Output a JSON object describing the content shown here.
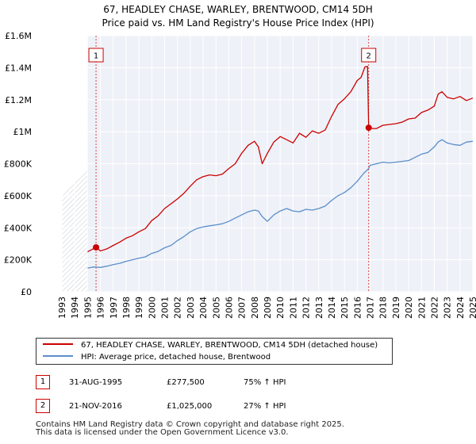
{
  "chart_data": {
    "type": "line",
    "title": "67, HEADLEY CHASE, WARLEY, BRENTWOOD, CM14 5DH",
    "subtitle": "Price paid vs. HM Land Registry's House Price Index (HPI)",
    "xlim": [
      1993,
      2025
    ],
    "ylim": [
      0,
      1600000
    ],
    "x_ticks": [
      1993,
      1994,
      1995,
      1996,
      1997,
      1998,
      1999,
      2000,
      2001,
      2002,
      2003,
      2004,
      2005,
      2006,
      2007,
      2008,
      2009,
      2010,
      2011,
      2012,
      2013,
      2014,
      2015,
      2016,
      2017,
      2018,
      2019,
      2020,
      2021,
      2022,
      2023,
      2024,
      2025
    ],
    "y_ticks": [
      {
        "value": 0,
        "label": "£0"
      },
      {
        "value": 200000,
        "label": "£200K"
      },
      {
        "value": 400000,
        "label": "£400K"
      },
      {
        "value": 600000,
        "label": "£600K"
      },
      {
        "value": 800000,
        "label": "£800K"
      },
      {
        "value": 1000000,
        "label": "£1M"
      },
      {
        "value": 1200000,
        "label": "£1.2M"
      },
      {
        "value": 1400000,
        "label": "£1.4M"
      },
      {
        "value": 1600000,
        "label": "£1.6M"
      }
    ],
    "grid": true,
    "data_start_year": 1995.0,
    "series": [
      {
        "name": "67, HEADLEY CHASE, WARLEY, BRENTWOOD, CM14 5DH (detached house)",
        "color": "#cc0000",
        "x": [
          1995.0,
          1995.3,
          1995.66,
          1996.0,
          1996.5,
          1997.0,
          1997.5,
          1998.0,
          1998.5,
          1999.0,
          1999.5,
          2000.0,
          2000.5,
          2001.0,
          2001.5,
          2002.0,
          2002.5,
          2003.0,
          2003.5,
          2004.0,
          2004.5,
          2005.0,
          2005.5,
          2006.0,
          2006.5,
          2007.0,
          2007.5,
          2008.0,
          2008.3,
          2008.6,
          2009.0,
          2009.5,
          2010.0,
          2010.5,
          2011.0,
          2011.5,
          2012.0,
          2012.5,
          2013.0,
          2013.5,
          2014.0,
          2014.5,
          2015.0,
          2015.5,
          2016.0,
          2016.3,
          2016.6,
          2016.8,
          2016.89,
          2017.2,
          2017.5,
          2018.0,
          2018.5,
          2019.0,
          2019.5,
          2020.0,
          2020.5,
          2021.0,
          2021.5,
          2022.0,
          2022.3,
          2022.6,
          2023.0,
          2023.5,
          2024.0,
          2024.5,
          2025.0
        ],
        "y": [
          250000,
          262000,
          277500,
          255000,
          268000,
          290000,
          310000,
          335000,
          350000,
          375000,
          395000,
          445000,
          475000,
          520000,
          550000,
          580000,
          615000,
          660000,
          700000,
          720000,
          730000,
          725000,
          735000,
          770000,
          800000,
          865000,
          915000,
          940000,
          905000,
          800000,
          865000,
          935000,
          970000,
          950000,
          930000,
          990000,
          965000,
          1005000,
          990000,
          1010000,
          1095000,
          1170000,
          1205000,
          1250000,
          1320000,
          1340000,
          1405000,
          1408000,
          1025000,
          1020000,
          1020000,
          1040000,
          1045000,
          1050000,
          1060000,
          1080000,
          1085000,
          1120000,
          1135000,
          1160000,
          1235000,
          1250000,
          1215000,
          1205000,
          1220000,
          1195000,
          1210000
        ]
      },
      {
        "name": "HPI: Average price, detached house, Brentwood",
        "color": "#5b8ec9",
        "x": [
          1995.0,
          1995.5,
          1996.0,
          1996.5,
          1997.0,
          1997.5,
          1998.0,
          1998.5,
          1999.0,
          1999.5,
          2000.0,
          2000.5,
          2001.0,
          2001.5,
          2002.0,
          2002.5,
          2003.0,
          2003.5,
          2004.0,
          2004.5,
          2005.0,
          2005.5,
          2006.0,
          2006.5,
          2007.0,
          2007.5,
          2008.0,
          2008.3,
          2008.6,
          2009.0,
          2009.5,
          2010.0,
          2010.5,
          2011.0,
          2011.5,
          2012.0,
          2012.5,
          2013.0,
          2013.5,
          2014.0,
          2014.5,
          2015.0,
          2015.5,
          2016.0,
          2016.5,
          2016.89,
          2017.0,
          2017.5,
          2018.0,
          2018.5,
          2019.0,
          2019.5,
          2020.0,
          2020.5,
          2021.0,
          2021.5,
          2022.0,
          2022.3,
          2022.6,
          2023.0,
          2023.5,
          2024.0,
          2024.5,
          2025.0
        ],
        "y": [
          148000,
          155000,
          152000,
          160000,
          170000,
          178000,
          190000,
          200000,
          210000,
          218000,
          240000,
          252000,
          275000,
          290000,
          320000,
          345000,
          375000,
          395000,
          405000,
          412000,
          418000,
          425000,
          440000,
          460000,
          480000,
          500000,
          510000,
          505000,
          470000,
          440000,
          480000,
          505000,
          520000,
          505000,
          500000,
          515000,
          510000,
          520000,
          535000,
          570000,
          600000,
          620000,
          650000,
          690000,
          740000,
          770000,
          790000,
          800000,
          810000,
          805000,
          810000,
          815000,
          820000,
          840000,
          860000,
          870000,
          905000,
          935000,
          950000,
          930000,
          920000,
          915000,
          935000,
          940000
        ]
      }
    ],
    "annotations": [
      {
        "label": "1",
        "x": 1995.66,
        "y": 277500
      },
      {
        "label": "2",
        "x": 2016.89,
        "y": 1025000
      }
    ]
  },
  "legend": {
    "items": [
      {
        "label": "67, HEADLEY CHASE, WARLEY, BRENTWOOD, CM14 5DH (detached house)",
        "color": "#cc0000"
      },
      {
        "label": "HPI: Average price, detached house, Brentwood",
        "color": "#5b8ec9"
      }
    ]
  },
  "transactions": [
    {
      "badge": "1",
      "date": "31-AUG-1995",
      "price": "£277,500",
      "hpi": "75% ↑ HPI"
    },
    {
      "badge": "2",
      "date": "21-NOV-2016",
      "price": "£1,025,000",
      "hpi": "27% ↑ HPI"
    }
  ],
  "footer": {
    "line1": "Contains HM Land Registry data © Crown copyright and database right 2025.",
    "line2": "This data is licensed under the Open Government Licence v3.0."
  }
}
